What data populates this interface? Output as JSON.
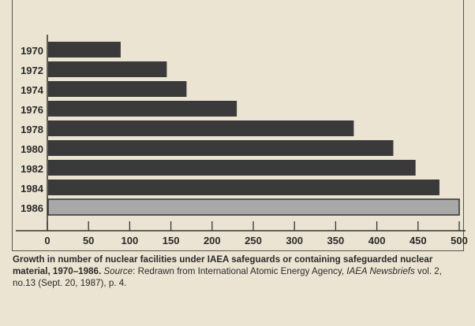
{
  "chart_data": {
    "type": "bar",
    "orientation": "horizontal",
    "categories": [
      "1970",
      "1972",
      "1974",
      "1976",
      "1978",
      "1980",
      "1982",
      "1984",
      "1986"
    ],
    "values": [
      89,
      145,
      169,
      230,
      372,
      420,
      447,
      476,
      500
    ],
    "xlim": [
      0,
      500
    ],
    "xticks": [
      "0",
      "50",
      "100",
      "150",
      "200",
      "250",
      "300",
      "350",
      "400",
      "450",
      "500"
    ],
    "title": "",
    "xlabel": "",
    "ylabel": "",
    "grid": false,
    "colors": {
      "bar": "#3a3a3a",
      "highlight_bar": "#a8a8a8"
    },
    "highlighted_category": "1986"
  },
  "caption": {
    "bold": "Growth in number of nuclear facilities under IAEA safeguards or containing safeguarded nuclear material, 1970–1986.",
    "source_label": "Source",
    "source_text": ": Redrawn from International Atomic Energy Agency, ",
    "publication": "IAEA Newsbriefs",
    "details": " vol. 2, no.13 (Sept. 20, 1987), p. 4."
  }
}
